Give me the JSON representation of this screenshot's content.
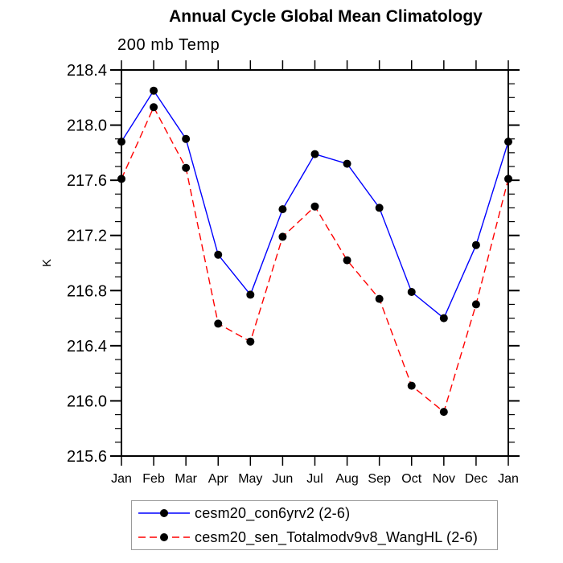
{
  "chart_data": {
    "type": "line",
    "title": "Annual Cycle Global Mean Climatology",
    "subtitle": "200 mb Temp",
    "ylabel": "K",
    "categories": [
      "Jan",
      "Feb",
      "Mar",
      "Apr",
      "May",
      "Jun",
      "Jul",
      "Aug",
      "Sep",
      "Oct",
      "Nov",
      "Dec",
      "Jan"
    ],
    "series": [
      {
        "name": "cesm20_con6yrv2 (2-6)",
        "color": "#0000ff",
        "line_style": "solid",
        "marker": "filled-circle",
        "marker_color": "#000000",
        "values": [
          217.88,
          218.25,
          217.9,
          217.06,
          216.77,
          217.39,
          217.79,
          217.72,
          217.4,
          216.79,
          216.6,
          217.13,
          217.88
        ]
      },
      {
        "name": "cesm20_sen_Totalmodv9v8_WangHL (2-6)",
        "color": "#ff0000",
        "line_style": "dashed",
        "marker": "filled-circle",
        "marker_color": "#000000",
        "values": [
          217.61,
          218.13,
          217.69,
          216.56,
          216.43,
          217.19,
          217.41,
          217.02,
          216.74,
          216.11,
          215.92,
          216.7,
          217.61
        ]
      }
    ],
    "ylim": [
      215.6,
      218.4
    ],
    "ytick_major": 0.4,
    "ytick_minor": 0.1,
    "grid": false,
    "legend_position": "bottom",
    "axis_color": "#000000",
    "background_color": "#ffffff"
  }
}
